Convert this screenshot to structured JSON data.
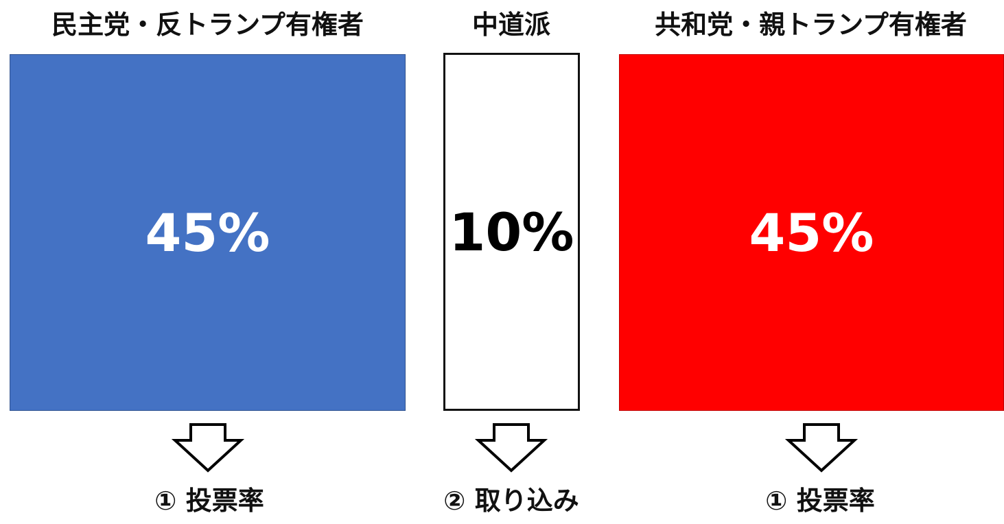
{
  "groups": {
    "left": {
      "heading": "民主党・反トランプ有権者",
      "percent": "45%",
      "fill_color": "#4472C4",
      "text_color": "#FFFFFF",
      "label": "① 投票率"
    },
    "center": {
      "heading": "中道派",
      "percent": "10%",
      "fill_color": "#FFFFFF",
      "text_color": "#000000",
      "label": "② 取り込み"
    },
    "right": {
      "heading": "共和党・親トランプ有権者",
      "percent": "45%",
      "fill_color": "#FF0000",
      "text_color": "#FFFFFF",
      "label": "① 投票率"
    }
  }
}
